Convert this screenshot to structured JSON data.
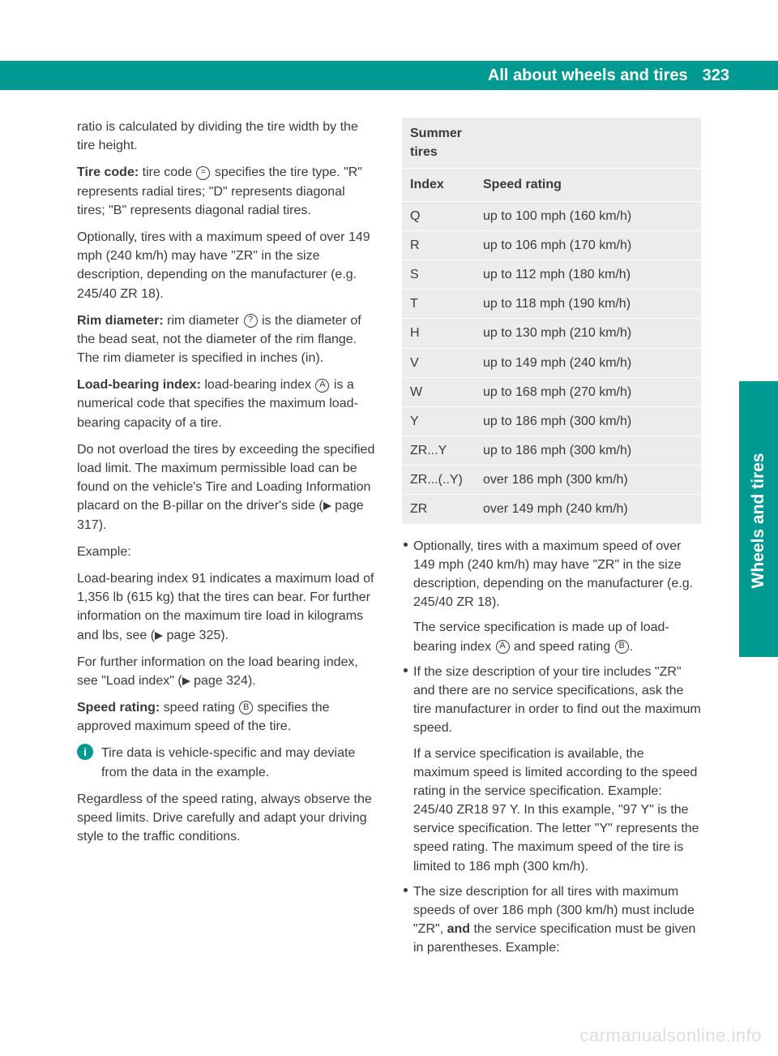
{
  "header": {
    "title": "All about wheels and tires",
    "page_number": "323",
    "section_tab": "Wheels and tires"
  },
  "left_column": {
    "p1": "ratio is calculated by dividing the tire width by the tire height.",
    "tirecode_label": "Tire code:",
    "tirecode_text_a": " tire code ",
    "tirecode_sym": "=",
    "tirecode_text_b": " specifies the tire type. \"R\" represents radial tires; \"D\" represents diagonal tires; \"B\" represents diagonal radial tires.",
    "p3": "Optionally, tires with a maximum speed of over 149 mph (240 km/h) may have \"ZR\" in the size description, depending on the manufacturer (e.g. 245/40 ZR 18).",
    "rim_label": "Rim diameter:",
    "rim_text_a": " rim diameter ",
    "rim_sym": "?",
    "rim_text_b": " is the diameter of the bead seat, not the diameter of the rim flange. The rim diameter is specified in inches (in).",
    "load_label": "Load-bearing index: ",
    "load_text_a": " load-bearing index ",
    "load_sym": "A",
    "load_text_b": " is a numerical code that specifies the maximum load-bearing capacity of a tire.",
    "p6a": "Do not overload the tires by exceeding the specified load limit. The maximum permissible load can be found on the vehicle's Tire and Loading Information placard on the B-pillar on the driver's side (",
    "p6_ref": " page 317).",
    "p7": "Example:",
    "p8a": "Load-bearing index 91 indicates a maximum load of 1,356 lb (615 kg) that the tires can bear. For further information on the maximum tire load in kilograms and lbs, see (",
    "p8_ref": " page 325).",
    "p9a": "For further information on the load bearing index, see \"Load index\" (",
    "p9_ref": " page 324).",
    "speed_label": "Speed rating:",
    "speed_text_a": " speed rating ",
    "speed_sym": "B",
    "speed_text_b": " specifies the approved maximum speed of the tire.",
    "info_text": "Tire data is vehicle-specific and may deviate from the data in the example.",
    "p11": "Regardless of the speed rating, always observe the speed limits. Drive carefully and adapt your driving style to the traffic conditions."
  },
  "right_column": {
    "table": {
      "header_left": "Summer tires",
      "header_index": "Index",
      "header_rating": "Speed rating",
      "rows": [
        {
          "idx": "Q",
          "val": "up to 100 mph (160 km/h)"
        },
        {
          "idx": "R",
          "val": "up to 106 mph (170 km/h)"
        },
        {
          "idx": "S",
          "val": "up to 112 mph (180 km/h)"
        },
        {
          "idx": "T",
          "val": "up to 118 mph (190 km/h)"
        },
        {
          "idx": "H",
          "val": "up to 130 mph (210 km/h)"
        },
        {
          "idx": "V",
          "val": "up to 149 mph (240 km/h)"
        },
        {
          "idx": "W",
          "val": "up to 168 mph (270 km/h)"
        },
        {
          "idx": "Y",
          "val": "up to 186 mph (300 km/h)"
        },
        {
          "idx": "ZR...Y",
          "val": "up to 186 mph (300 km/h)"
        },
        {
          "idx": "ZR...(..Y)",
          "val": "over 186 mph (300 km/h)"
        },
        {
          "idx": "ZR",
          "val": "over 149 mph (240 km/h)"
        }
      ]
    },
    "b1_p1": "Optionally, tires with a maximum speed of over 149 mph (240 km/h) may have \"ZR\" in the size description, depending on the manufacturer (e.g. 245/40 ZR 18).",
    "b1_p2a": "The service specification is made up of load-bearing index ",
    "b1_sym1": "A",
    "b1_p2b": " and speed rating ",
    "b1_sym2": "B",
    "b1_p2c": ".",
    "b2_p1": "If the size description of your tire includes \"ZR\" and there are no service specifications, ask the tire manufacturer in order to find out the maximum speed.",
    "b2_p2": "If a service specification is available, the maximum speed is limited according to the speed rating in the service specification. Example: 245/40 ZR18 97 Y. In this example, \"97 Y\" is the service specification. The letter \"Y\" represents the speed rating. The maximum speed of the tire is limited to 186 mph (300 km/h).",
    "b3a": "The size description for all tires with maximum speeds of over 186 mph (300 km/h) must include \"ZR\", ",
    "b3_bold": "and",
    "b3b": " the service specification must be given in parentheses. Example:"
  },
  "watermark": "carmanualsonline.info",
  "colors": {
    "accent": "#009a93",
    "table_bg": "#ececec",
    "text": "#3a3a3a"
  }
}
